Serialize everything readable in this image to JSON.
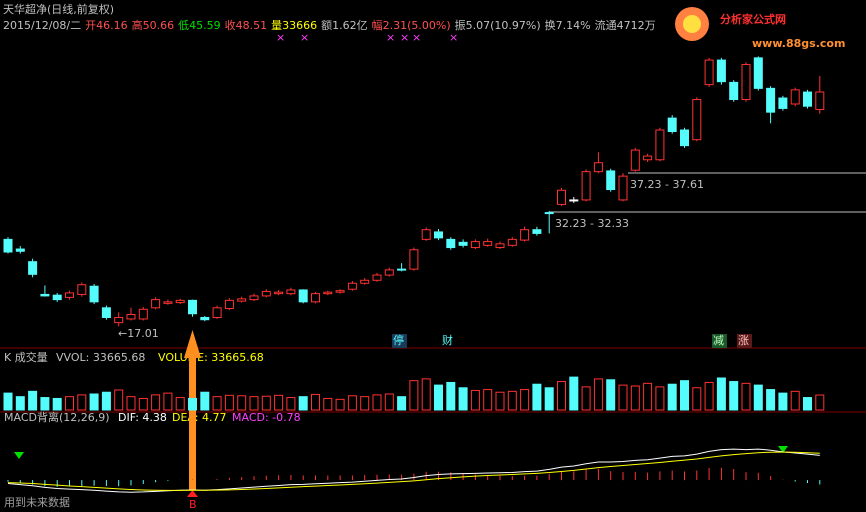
{
  "header": {
    "name": "天华超净(日线,前复权)",
    "date": "2015/12/08/二",
    "open": "开46.16",
    "high": "高50.66",
    "low": "低45.59",
    "close": "收48.51",
    "volume": "量33666",
    "amount": "额1.62亿",
    "change": "幅2.31(5.00%)",
    "amplitude": "振5.07(10.97%)",
    "turnover": "换7.14%",
    "float": "流通4712万"
  },
  "logo": {
    "title": "分析家公式网",
    "url": "www.88gs.com"
  },
  "annotations": {
    "low": "←17.01",
    "gap_upper": "37.23 - 37.61",
    "gap_lower": "32.23 - 32.33",
    "tag_1": "停",
    "tag_2": "财",
    "tag_3": "减",
    "tag_4": "涨",
    "signal": "B",
    "footer": "用到未来数据"
  },
  "chart_data": [
    {
      "type": "candlestick",
      "up_color": "#ff3232",
      "down_color": "#54fcfc",
      "ylim": [
        14.5,
        55.5
      ],
      "open": [
        28.7,
        27.4,
        25.7,
        21.3,
        21.2,
        20.9,
        21.3,
        22.4,
        19.5,
        17.5,
        18.0,
        18.0,
        19.5,
        20.1,
        20.2,
        20.5,
        18.2,
        18.2,
        19.4,
        20.4,
        20.6,
        21.1,
        21.4,
        21.4,
        21.9,
        20.3,
        21.4,
        21.6,
        22.0,
        22.8,
        23.2,
        23.9,
        24.7,
        24.7,
        28.7,
        29.7,
        28.7,
        28.3,
        27.6,
        27.9,
        27.6,
        27.9,
        28.6,
        30.0,
        32.3,
        33.4,
        34.0,
        34.0,
        37.8,
        37.9,
        34.0,
        38.0,
        39.4,
        39.4,
        45.0,
        43.4,
        42.1,
        49.5,
        52.8,
        49.8,
        47.5,
        53.1,
        49.0,
        47.7,
        46.9,
        48.5,
        46.16
      ],
      "high": [
        29.0,
        27.8,
        26.1,
        22.5,
        21.5,
        21.8,
        22.9,
        22.7,
        19.8,
        18.9,
        19.5,
        19.6,
        20.9,
        20.6,
        20.7,
        20.6,
        18.4,
        19.8,
        20.8,
        21.0,
        21.4,
        22.0,
        21.9,
        22.2,
        22.0,
        21.6,
        21.8,
        22.0,
        23.1,
        23.5,
        24.2,
        24.9,
        25.5,
        27.6,
        30.3,
        30.1,
        29.0,
        28.7,
        28.7,
        28.8,
        28.4,
        29.0,
        30.4,
        30.4,
        32.5,
        35.6,
        34.4,
        38.1,
        40.4,
        38.2,
        37.61,
        41.0,
        40.2,
        43.7,
        45.4,
        43.7,
        47.8,
        53.1,
        53.1,
        50.1,
        52.5,
        53.3,
        49.3,
        48.0,
        49.1,
        48.8,
        50.66
      ],
      "low": [
        26.8,
        26.8,
        23.6,
        21.0,
        20.3,
        20.6,
        21.0,
        20.0,
        17.9,
        17.01,
        17.8,
        17.8,
        19.3,
        19.9,
        20.0,
        18.3,
        17.7,
        18.0,
        19.2,
        20.2,
        20.4,
        20.9,
        21.2,
        21.2,
        20.1,
        20.1,
        21.2,
        21.4,
        21.8,
        22.6,
        23.0,
        23.7,
        24.4,
        24.5,
        28.5,
        28.6,
        27.3,
        27.6,
        27.4,
        27.7,
        27.4,
        27.7,
        28.4,
        29.2,
        29.5,
        33.2,
        33.6,
        33.8,
        37.6,
        35.1,
        33.8,
        37.8,
        39.1,
        39.2,
        42.9,
        41.0,
        41.9,
        49.2,
        49.5,
        47.2,
        47.2,
        48.7,
        44.3,
        46.0,
        46.6,
        46.3,
        45.59
      ],
      "close": [
        27.0,
        27.1,
        24.0,
        21.1,
        20.6,
        21.5,
        22.6,
        20.3,
        18.2,
        18.2,
        18.6,
        19.3,
        20.6,
        20.3,
        20.5,
        18.7,
        17.9,
        19.5,
        20.5,
        20.7,
        21.1,
        21.7,
        21.6,
        21.9,
        20.3,
        21.4,
        21.6,
        21.8,
        22.8,
        23.2,
        23.9,
        24.6,
        24.6,
        27.3,
        30.0,
        28.9,
        27.6,
        27.9,
        28.4,
        28.4,
        28.1,
        28.7,
        30.0,
        29.5,
        32.2,
        35.3,
        34.0,
        37.8,
        39.0,
        35.4,
        37.2,
        40.7,
        39.9,
        43.4,
        43.2,
        41.3,
        47.5,
        52.8,
        49.9,
        47.5,
        52.2,
        49.0,
        45.8,
        46.3,
        48.8,
        46.6,
        48.51
      ]
    },
    {
      "type": "bar",
      "title": "K 成交量",
      "vvol": "VVOL: 33665.68",
      "label": "VOLUME: 33665.68",
      "ylim": [
        0,
        90000
      ],
      "values": [
        38000,
        30000,
        42000,
        28000,
        26000,
        30000,
        34000,
        36000,
        40000,
        45000,
        30000,
        26000,
        34000,
        38000,
        28000,
        26000,
        40000,
        30000,
        33000,
        32000,
        30000,
        31000,
        33000,
        28000,
        30000,
        35000,
        26000,
        24000,
        32000,
        30000,
        34000,
        36000,
        30000,
        66000,
        70000,
        56000,
        62000,
        50000,
        44000,
        46000,
        40000,
        42000,
        46000,
        58000,
        50000,
        64000,
        74000,
        52000,
        70000,
        68000,
        56000,
        54000,
        60000,
        52000,
        58000,
        66000,
        50000,
        62000,
        72000,
        64000,
        60000,
        56000,
        46000,
        38000,
        42000,
        28000,
        33665.68
      ]
    },
    {
      "type": "line",
      "title": "MACD背离(12,26,9)",
      "ylim": [
        -3,
        8
      ],
      "series": [
        {
          "name": "DIF: 4.38",
          "color": "#ffffff",
          "values": [
            -0.6,
            -0.8,
            -1.0,
            -1.3,
            -1.5,
            -1.6,
            -1.7,
            -1.8,
            -1.95,
            -2.1,
            -2.15,
            -2.1,
            -2.0,
            -1.9,
            -1.8,
            -1.75,
            -1.8,
            -1.7,
            -1.55,
            -1.4,
            -1.25,
            -1.1,
            -0.95,
            -0.8,
            -0.75,
            -0.65,
            -0.55,
            -0.45,
            -0.35,
            -0.2,
            -0.05,
            0.1,
            0.2,
            0.45,
            0.8,
            1.0,
            1.1,
            1.15,
            1.2,
            1.25,
            1.3,
            1.35,
            1.5,
            1.6,
            1.9,
            2.3,
            2.5,
            2.9,
            3.2,
            3.2,
            3.3,
            3.5,
            3.6,
            3.9,
            4.2,
            4.3,
            4.6,
            5.1,
            5.4,
            5.5,
            5.4,
            5.5,
            5.3,
            5.0,
            4.8,
            4.6,
            4.38
          ]
        },
        {
          "name": "DEA: 4.77",
          "color": "#ffff00",
          "values": [
            -0.44,
            -0.51,
            -0.61,
            -0.75,
            -0.9,
            -1.04,
            -1.17,
            -1.3,
            -1.43,
            -1.56,
            -1.68,
            -1.76,
            -1.81,
            -1.83,
            -1.82,
            -1.81,
            -1.81,
            -1.79,
            -1.74,
            -1.67,
            -1.59,
            -1.49,
            -1.38,
            -1.26,
            -1.16,
            -1.06,
            -0.96,
            -0.86,
            -0.76,
            -0.65,
            -0.53,
            -0.4,
            -0.28,
            -0.13,
            0.06,
            0.25,
            0.42,
            0.57,
            0.7,
            0.81,
            0.91,
            1.0,
            1.1,
            1.2,
            1.34,
            1.53,
            1.72,
            1.96,
            2.21,
            2.41,
            2.59,
            2.77,
            2.94,
            3.13,
            3.35,
            3.54,
            3.75,
            4.02,
            4.3,
            4.52,
            4.7,
            4.86,
            4.95,
            4.96,
            4.93,
            4.86,
            4.77
          ]
        }
      ],
      "macd": {
        "name": "MACD: -0.78",
        "up_color": "#ff3232",
        "down_color": "#54fcfc",
        "values": [
          -0.32,
          -0.58,
          -0.78,
          -1.1,
          -1.2,
          -1.12,
          -1.06,
          -1.0,
          -1.04,
          -1.08,
          -0.94,
          -0.68,
          -0.38,
          -0.14,
          0.04,
          0.12,
          0.02,
          0.18,
          0.38,
          0.54,
          0.68,
          0.78,
          0.86,
          0.92,
          0.82,
          0.82,
          0.82,
          0.82,
          0.82,
          0.9,
          0.96,
          1.0,
          0.96,
          1.16,
          1.48,
          1.5,
          1.36,
          1.16,
          1.0,
          0.88,
          0.78,
          0.7,
          0.8,
          0.8,
          1.12,
          1.54,
          1.56,
          1.88,
          1.98,
          1.58,
          1.42,
          1.46,
          1.32,
          1.54,
          1.7,
          1.52,
          1.7,
          2.16,
          2.2,
          1.96,
          1.4,
          1.28,
          0.7,
          0.08,
          -0.26,
          -0.52,
          -0.78
        ]
      }
    }
  ]
}
